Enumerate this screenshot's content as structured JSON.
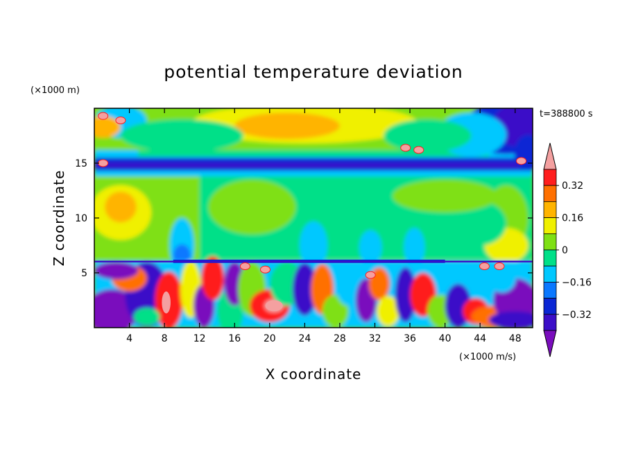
{
  "chart_data": {
    "type": "heatmap",
    "title": "potential temperature deviation",
    "xlabel": "X coordinate",
    "ylabel": "Z coordinate",
    "x_unit": "(×1000 m/s)",
    "y_unit": "(×1000 m)",
    "time_label": "t=388800 s",
    "xlim": [
      0,
      50
    ],
    "ylim": [
      0,
      20
    ],
    "x_ticks": [
      4,
      8,
      12,
      16,
      20,
      24,
      28,
      32,
      36,
      40,
      44,
      48
    ],
    "y_ticks": [
      5,
      10,
      15
    ],
    "colorbar": {
      "levels": [
        -0.4,
        -0.32,
        -0.24,
        -0.16,
        -0.08,
        0,
        0.08,
        0.16,
        0.24,
        0.32,
        0.4
      ],
      "tick_labels": [
        "0.32",
        "0.16",
        "0",
        "−0.16",
        "−0.32"
      ],
      "tick_values": [
        0.32,
        0.16,
        0,
        -0.16,
        -0.32
      ],
      "colors": [
        "#7a0dbd",
        "#3b0ec8",
        "#0a26d4",
        "#0a78ff",
        "#00c8ff",
        "#00e088",
        "#7fe014",
        "#f0f000",
        "#ffb400",
        "#ff7000",
        "#ff1e1e",
        "#f4a0a0"
      ]
    },
    "field_bands": [
      {
        "z_range": [
          17.5,
          20
        ],
        "description_values": [
          0.16,
          0.24
        ]
      },
      {
        "z_range": [
          14.5,
          15.5
        ],
        "description_values": [
          -0.32,
          -0.4
        ]
      },
      {
        "z_range": [
          6.5,
          14
        ],
        "description_values": [
          0,
          0.08
        ]
      },
      {
        "z_range": [
          0,
          6
        ],
        "description_values": [
          -0.4,
          0.4
        ]
      }
    ]
  }
}
